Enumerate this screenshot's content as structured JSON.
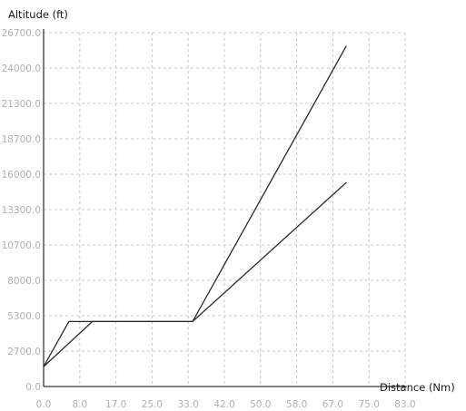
{
  "chart_data": {
    "type": "line",
    "title": "",
    "xlabel": "Distance (Nm)",
    "ylabel": "Altitude (ft)",
    "xlim": [
      0,
      83
    ],
    "ylim": [
      0,
      26700
    ],
    "xticks": [
      "0.0",
      "8.0",
      "17.0",
      "25.0",
      "33.0",
      "42.0",
      "50.0",
      "58.0",
      "67.0",
      "75.0",
      "83.0"
    ],
    "yticks": [
      "0.0",
      "2700.0",
      "5300.0",
      "8000.0",
      "10700.0",
      "13300.0",
      "16000.0",
      "18700.0",
      "21300.0",
      "24000.0",
      "26700.0"
    ],
    "grid": true,
    "legend": "none",
    "series": [
      {
        "points": [
          [
            0,
            1500
          ],
          [
            5.8,
            4900
          ],
          [
            34.2,
            4900
          ],
          [
            69.5,
            25700
          ]
        ]
      },
      {
        "points": [
          [
            0,
            1500
          ],
          [
            11.2,
            4900
          ],
          [
            34.2,
            4900
          ],
          [
            69.5,
            15400
          ]
        ]
      }
    ],
    "colors": {
      "lines": "#2a2a2a",
      "grid": "#c8c8c8",
      "tick_text": "#b0b0b0"
    }
  }
}
